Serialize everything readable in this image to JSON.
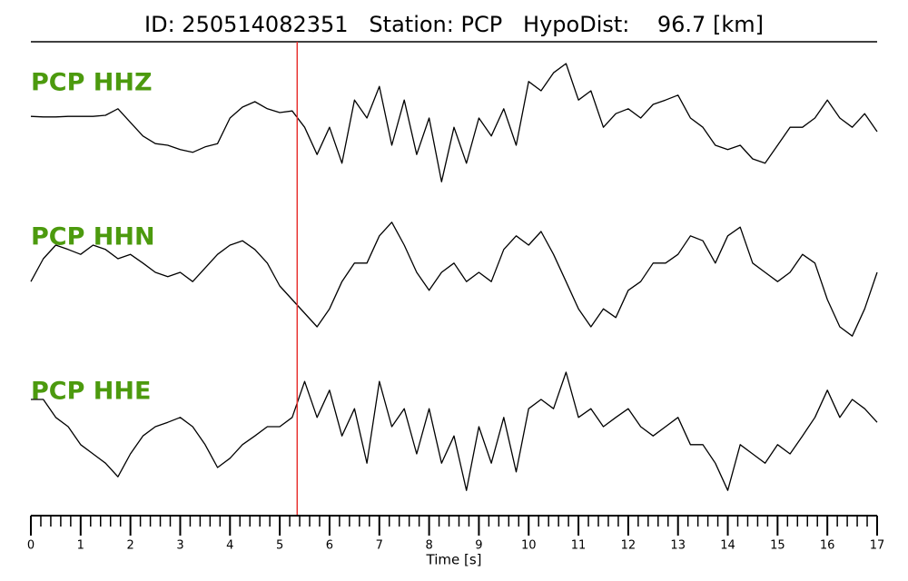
{
  "chart_data": {
    "type": "seismogram",
    "title": "ID: 250514082351   Station: PCP   HypoDist:    96.7 [km]",
    "x_label": "Time [s]",
    "xlim": [
      0,
      17
    ],
    "xticks": [
      0,
      1,
      2,
      3,
      4,
      5,
      6,
      7,
      8,
      9,
      10,
      11,
      12,
      13,
      14,
      15,
      16,
      17
    ],
    "xminorticks": [
      0.2,
      0.4,
      0.6,
      0.8,
      1.2,
      1.4,
      1.6,
      1.8,
      2.2,
      2.4,
      2.6,
      2.8,
      3.2,
      3.4,
      3.6,
      3.8,
      4.2,
      4.4,
      4.6,
      4.8,
      5.2,
      5.4,
      5.6,
      5.8,
      6.2,
      6.4,
      6.6,
      6.8,
      7.2,
      7.4,
      7.6,
      7.8,
      8.2,
      8.4,
      8.6,
      8.8,
      9.2,
      9.4,
      9.6,
      9.8,
      10.2,
      10.4,
      10.6,
      10.8,
      11.2,
      11.4,
      11.6,
      11.8,
      12.2,
      12.4,
      12.6,
      12.8,
      13.2,
      13.4,
      13.6,
      13.8,
      14.2,
      14.4,
      14.6,
      14.8,
      15.2,
      15.4,
      15.6,
      15.8,
      16.2,
      16.4,
      16.6,
      16.8
    ],
    "ylim": [
      -1.5,
      1.5
    ],
    "pick_time": 5.35,
    "pick_color": "#e8312f",
    "label_color": "#4c9a0e",
    "x": [
      0,
      0.25,
      0.5,
      0.75,
      1,
      1.25,
      1.5,
      1.75,
      2,
      2.25,
      2.5,
      2.75,
      3,
      3.25,
      3.5,
      3.75,
      4,
      4.25,
      4.5,
      4.75,
      5,
      5.25,
      5.5,
      5.75,
      6,
      6.25,
      6.5,
      6.75,
      7,
      7.25,
      7.5,
      7.75,
      8,
      8.25,
      8.5,
      8.75,
      9,
      9.25,
      9.5,
      9.75,
      10,
      10.25,
      10.5,
      10.75,
      11,
      11.25,
      11.5,
      11.75,
      12,
      12.25,
      12.5,
      12.75,
      13,
      13.25,
      13.5,
      13.75,
      14,
      14.25,
      14.5,
      14.75,
      15,
      15.25,
      15.5,
      15.75,
      16,
      16.25,
      16.5,
      16.75,
      17
    ],
    "series": [
      {
        "name": "PCP HHZ",
        "color": "#000000",
        "values": [
          0.03,
          0.02,
          0.02,
          0.03,
          0.03,
          0.03,
          0.05,
          0.17,
          -0.08,
          -0.33,
          -0.47,
          -0.5,
          -0.58,
          -0.63,
          -0.53,
          -0.47,
          0,
          0.2,
          0.3,
          0.17,
          0.1,
          0.13,
          -0.17,
          -0.67,
          -0.17,
          -0.83,
          0.33,
          0,
          0.58,
          -0.5,
          0.33,
          -0.67,
          0,
          -1.17,
          -0.17,
          -0.83,
          0,
          -0.33,
          0.17,
          -0.5,
          0.67,
          0.5,
          0.83,
          1,
          0.33,
          0.5,
          -0.17,
          0.08,
          0.17,
          0,
          0.25,
          0.33,
          0.42,
          0,
          -0.17,
          -0.5,
          -0.58,
          -0.5,
          -0.75,
          -0.83,
          -0.5,
          -0.17,
          -0.17,
          0,
          0.33,
          0,
          -0.17,
          0.08,
          -0.25
        ]
      },
      {
        "name": "PCP HHN",
        "color": "#000000",
        "values": [
          -0.17,
          0.25,
          0.5,
          0.42,
          0.33,
          0.5,
          0.42,
          0.25,
          0.33,
          0.17,
          0,
          -0.08,
          0,
          -0.17,
          0.08,
          0.33,
          0.5,
          0.58,
          0.42,
          0.17,
          -0.25,
          -0.5,
          -0.75,
          -1,
          -0.67,
          -0.17,
          0.17,
          0.17,
          0.67,
          0.92,
          0.5,
          0,
          -0.33,
          0,
          0.17,
          -0.17,
          0,
          -0.17,
          0.42,
          0.67,
          0.5,
          0.75,
          0.33,
          -0.17,
          -0.67,
          -1,
          -0.67,
          -0.83,
          -0.33,
          -0.17,
          0.17,
          0.17,
          0.33,
          0.67,
          0.58,
          0.17,
          0.67,
          0.83,
          0.17,
          0,
          -0.17,
          0,
          0.33,
          0.17,
          -0.5,
          -1,
          -1.17,
          -0.67,
          0
        ]
      },
      {
        "name": "PCP HHE",
        "color": "#000000",
        "values": [
          0.5,
          0.5,
          0.17,
          0,
          -0.33,
          -0.5,
          -0.67,
          -0.92,
          -0.5,
          -0.17,
          0,
          0.08,
          0.17,
          0,
          -0.33,
          -0.75,
          -0.58,
          -0.33,
          -0.17,
          0,
          0,
          0.17,
          0.83,
          0.17,
          0.67,
          -0.17,
          0.33,
          -0.67,
          0.83,
          0,
          0.33,
          -0.5,
          0.33,
          -0.67,
          -0.17,
          -1.17,
          0,
          -0.67,
          0.17,
          -0.83,
          0.33,
          0.5,
          0.33,
          1,
          0.17,
          0.33,
          0,
          0.17,
          0.33,
          0,
          -0.17,
          0,
          0.17,
          -0.33,
          -0.33,
          -0.67,
          -1.17,
          -0.33,
          -0.5,
          -0.67,
          -0.33,
          -0.5,
          -0.17,
          0.17,
          0.67,
          0.17,
          0.5,
          0.33,
          0.08
        ]
      }
    ]
  }
}
